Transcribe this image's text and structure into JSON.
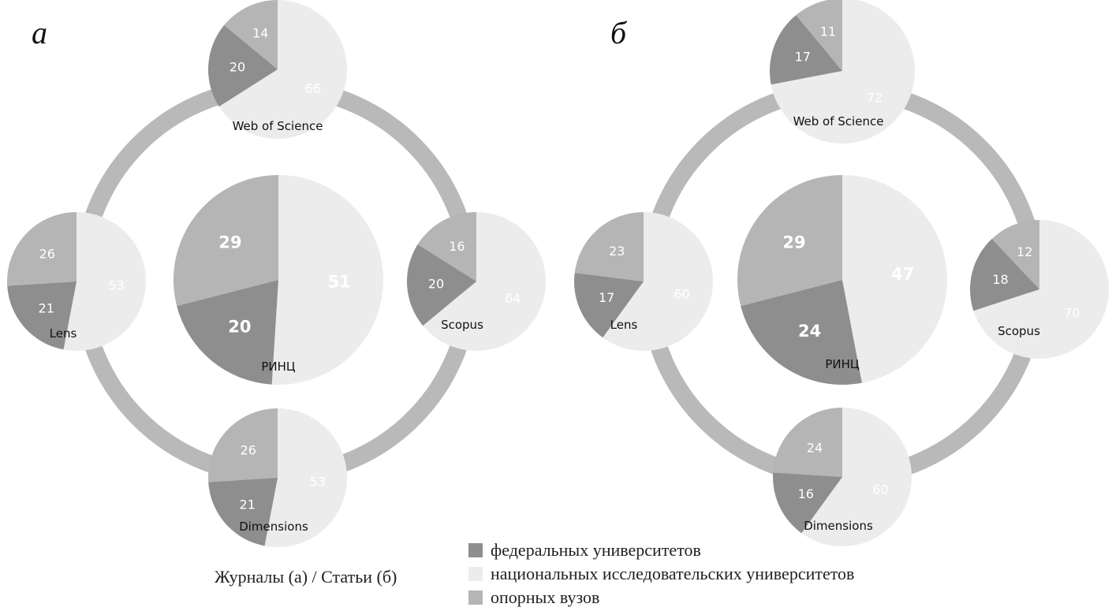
{
  "chart_data": [
    {
      "type": "pie",
      "panel_label": "а",
      "series_order": [
        "national",
        "federal",
        "opornye"
      ],
      "ring_color": "#b9b9b9",
      "pies": [
        {
          "name": "Web of Science",
          "values": {
            "national": 66,
            "federal": 20,
            "opornye": 14
          }
        },
        {
          "name": "Lens",
          "values": {
            "national": 53,
            "federal": 21,
            "opornye": 26
          }
        },
        {
          "name": "Scopus",
          "values": {
            "national": 64,
            "federal": 20,
            "opornye": 16
          }
        },
        {
          "name": "Dimensions",
          "values": {
            "national": 53,
            "federal": 21,
            "opornye": 26
          }
        },
        {
          "name": "РИНЦ",
          "values": {
            "national": 51,
            "federal": 20,
            "opornye": 29
          }
        }
      ]
    },
    {
      "type": "pie",
      "panel_label": "б",
      "series_order": [
        "national",
        "federal",
        "opornye"
      ],
      "ring_color": "#b9b9b9",
      "pies": [
        {
          "name": "Web of Science",
          "values": {
            "national": 72,
            "federal": 17,
            "opornye": 11
          }
        },
        {
          "name": "Lens",
          "values": {
            "national": 60,
            "federal": 17,
            "opornye": 23
          }
        },
        {
          "name": "Scopus",
          "values": {
            "national": 70,
            "federal": 18,
            "opornye": 12
          }
        },
        {
          "name": "Dimensions",
          "values": {
            "national": 60,
            "federal": 16,
            "opornye": 24
          }
        },
        {
          "name": "РИНЦ",
          "values": {
            "national": 47,
            "federal": 24,
            "opornye": 29
          }
        }
      ]
    }
  ],
  "legend": {
    "title": "Журналы (а) / Статьи (б)",
    "items": [
      {
        "key": "federal",
        "label": "федеральных университетов",
        "color": "#8e8e8e"
      },
      {
        "key": "national",
        "label": "национальных исследовательских университетов",
        "color": "#ececec"
      },
      {
        "key": "opornye",
        "label": "опорных вузов",
        "color": "#b5b5b5"
      }
    ]
  }
}
